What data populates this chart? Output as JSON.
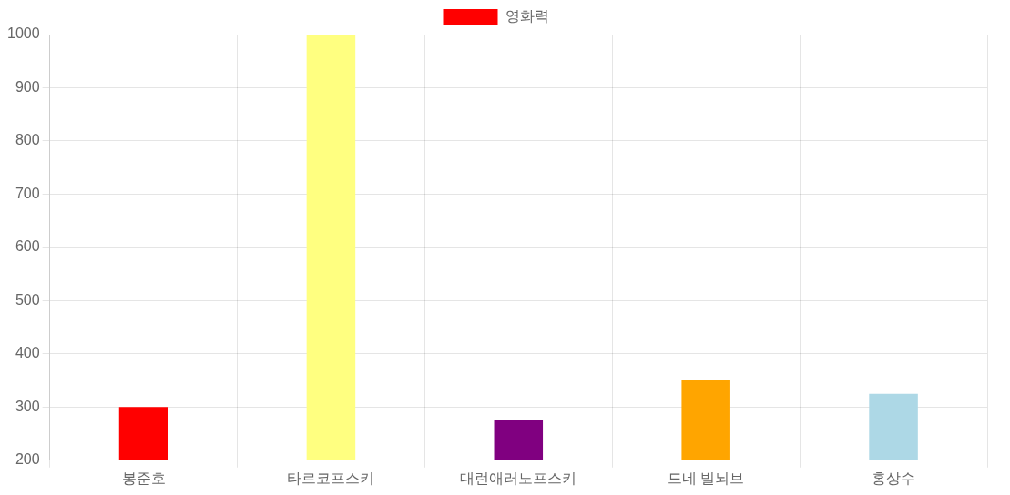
{
  "chart_data": {
    "type": "bar",
    "categories": [
      "봉준호",
      "타르코프스키",
      "대런애러노프스키",
      "드네 빌뇌브",
      "홍상수"
    ],
    "series": [
      {
        "name": "영화력",
        "color": "#ff0000",
        "colors": [
          "#ff0000",
          "#ffff80",
          "#800080",
          "#ffa500",
          "#add8e6"
        ],
        "values": [
          300,
          1000,
          275,
          350,
          325
        ]
      }
    ],
    "ylim": [
      200,
      1000
    ],
    "yticks": [
      200,
      300,
      400,
      500,
      600,
      700,
      800,
      900,
      1000
    ],
    "grid": true,
    "legend": "top"
  }
}
